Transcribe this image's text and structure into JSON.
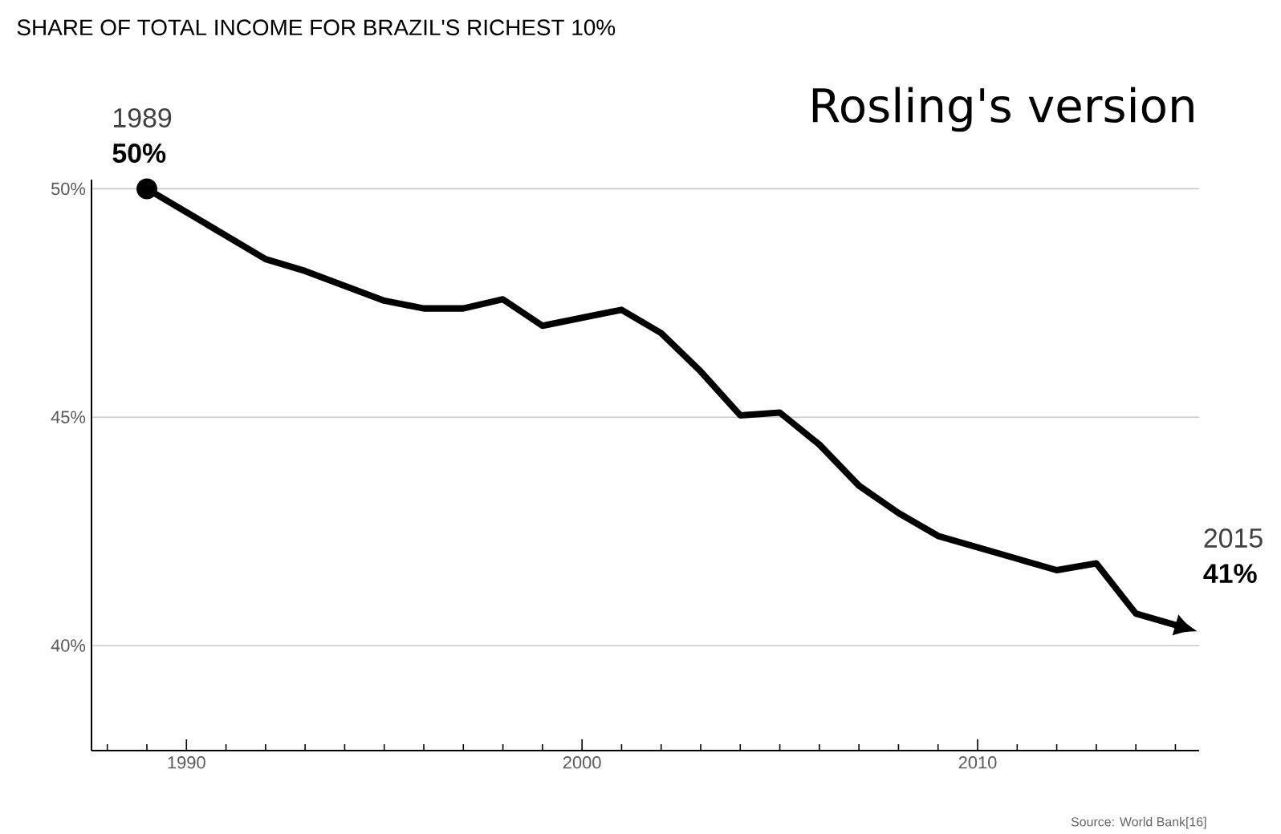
{
  "chart_data": {
    "type": "line",
    "title": "SHARE OF TOTAL INCOME FOR BRAZIL'S RICHEST 10%",
    "x": [
      1989,
      1992,
      1993,
      1995,
      1996,
      1997,
      1998,
      1999,
      2001,
      2002,
      2003,
      2004,
      2005,
      2006,
      2007,
      2008,
      2009,
      2011,
      2012,
      2013,
      2014,
      2015
    ],
    "series": [
      {
        "color": "#000000",
        "values": [
          50.0,
          48.46,
          48.2,
          47.55,
          47.38,
          47.38,
          47.58,
          47.0,
          47.35,
          46.84,
          46.0,
          45.04,
          45.1,
          44.4,
          43.5,
          42.9,
          42.4,
          41.9,
          41.65,
          41.8,
          40.7,
          40.45
        ]
      }
    ],
    "xlim": [
      1987.6,
      2015.6
    ],
    "ylim": [
      37.7,
      50.2
    ],
    "xticks": [
      {
        "value": 1988,
        "label": null
      },
      {
        "value": 1989,
        "label": null
      },
      1990,
      {
        "value": 1991,
        "label": null
      },
      {
        "value": 1992,
        "label": null
      },
      {
        "value": 1993,
        "label": null
      },
      {
        "value": 1994,
        "label": null
      },
      {
        "value": 1995,
        "label": null
      },
      {
        "value": 1996,
        "label": null
      },
      {
        "value": 1997,
        "label": null
      },
      {
        "value": 1998,
        "label": null
      },
      {
        "value": 1999,
        "label": null
      },
      2000,
      {
        "value": 2001,
        "label": null
      },
      {
        "value": 2002,
        "label": null
      },
      {
        "value": 2003,
        "label": null
      },
      {
        "value": 2004,
        "label": null
      },
      {
        "value": 2005,
        "label": null
      },
      {
        "value": 2006,
        "label": null
      },
      {
        "value": 2007,
        "label": null
      },
      {
        "value": 2008,
        "label": null
      },
      {
        "value": 2009,
        "label": null
      },
      2010,
      {
        "value": 2011,
        "label": null
      },
      {
        "value": 2012,
        "label": null
      },
      {
        "value": 2013,
        "label": null
      },
      {
        "value": 2014,
        "label": null
      },
      {
        "value": 2015,
        "label": null
      }
    ],
    "yticks": [
      {
        "value": 40,
        "label": "40%"
      },
      {
        "value": 45,
        "label": "45%"
      },
      {
        "value": 50,
        "label": "50%"
      }
    ],
    "grid": "y",
    "marker": "none",
    "line_style": "solid",
    "annotations": [
      "1989",
      "50%",
      "2015",
      "41%",
      "Rosling's version",
      "Source: World Bank[16]"
    ]
  }
}
